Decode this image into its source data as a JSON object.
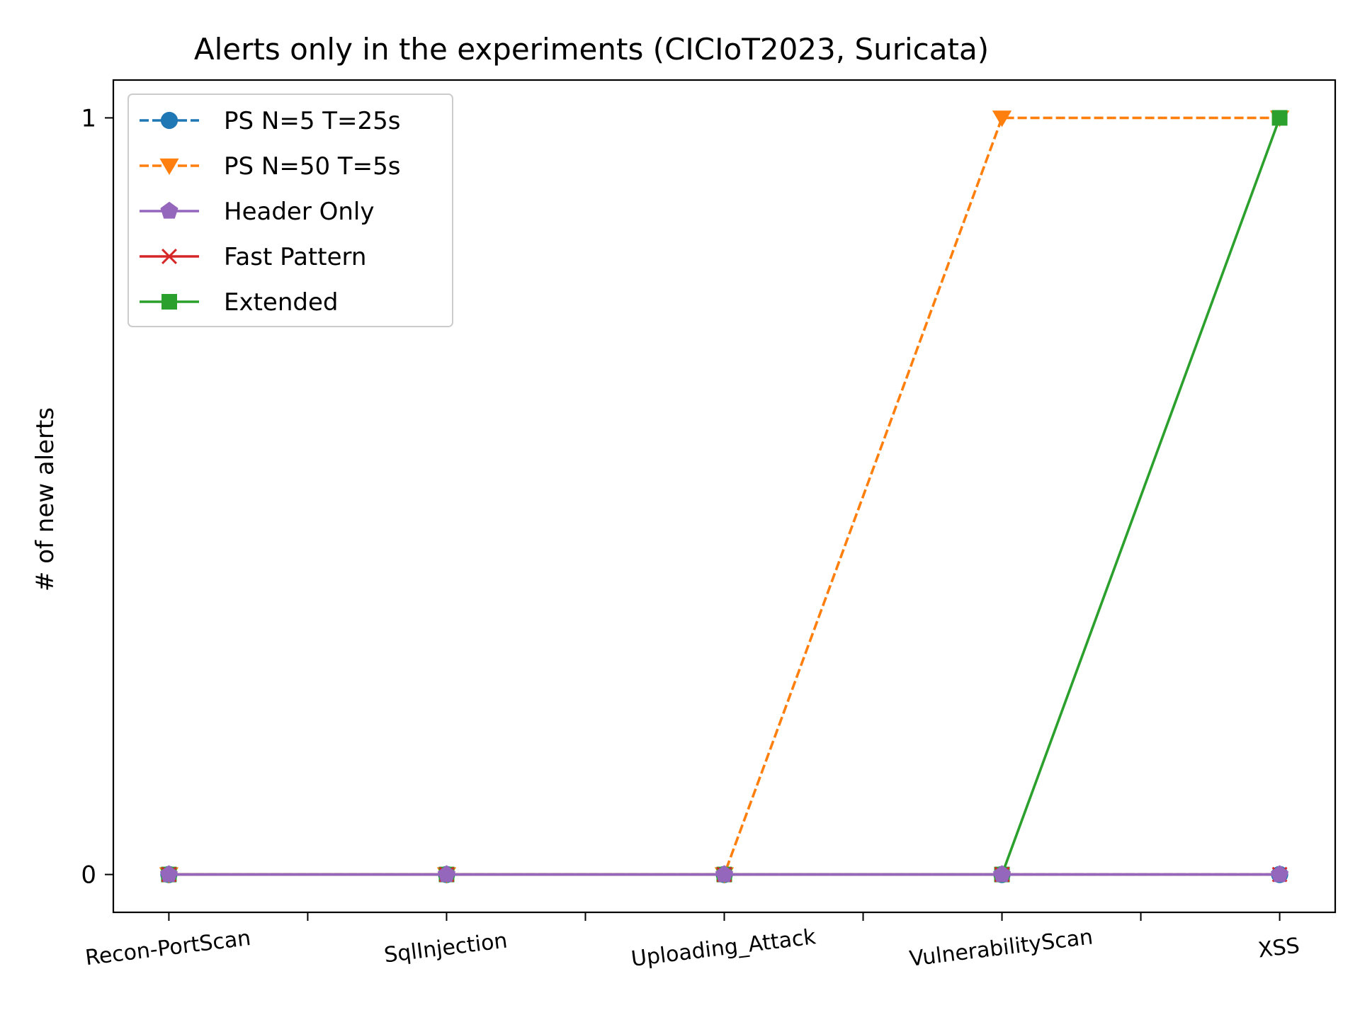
{
  "chart_data": {
    "type": "line",
    "title": "Alerts only in the experiments (CICIoT2023, Suricata)",
    "xlabel": "",
    "ylabel": "# of new alerts",
    "categories": [
      "Recon-PortScan",
      "SqlInjection",
      "Uploading_Attack",
      "VulnerabilityScan",
      "XSS"
    ],
    "xlim": [
      -0.2,
      4.2
    ],
    "ylim": [
      -0.05,
      1.05
    ],
    "yticks": [
      0,
      1
    ],
    "x_minor_ticks": [
      0.5,
      1.5,
      2.5,
      3.5
    ],
    "grid": false,
    "legend_position": "upper-left",
    "series": [
      {
        "name": "PS N=5 T=25s",
        "values": [
          0,
          0,
          0,
          0,
          0
        ],
        "color": "#1f77b4",
        "marker": "circle",
        "linestyle": "dashed"
      },
      {
        "name": "PS N=50 T=5s",
        "values": [
          0,
          0,
          0,
          1,
          1
        ],
        "color": "#ff7f0e",
        "marker": "triangle-down",
        "linestyle": "dashed"
      },
      {
        "name": "Extended",
        "values": [
          0,
          0,
          0,
          0,
          1
        ],
        "color": "#2ca02c",
        "marker": "square",
        "linestyle": "solid"
      },
      {
        "name": "Fast Pattern",
        "values": [
          0,
          0,
          0,
          0,
          0
        ],
        "color": "#d62728",
        "marker": "x",
        "linestyle": "solid"
      },
      {
        "name": "Header Only",
        "values": [
          0,
          0,
          0,
          0,
          0
        ],
        "color": "#9467bd",
        "marker": "pentagon",
        "linestyle": "solid"
      }
    ],
    "legend_order": [
      "PS N=5 T=25s",
      "PS N=50 T=5s",
      "Header Only",
      "Fast Pattern",
      "Extended"
    ]
  }
}
